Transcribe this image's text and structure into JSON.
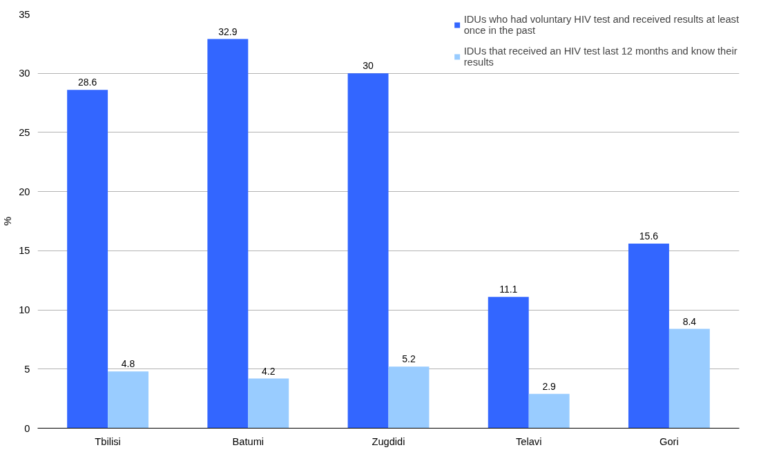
{
  "chart_data": {
    "type": "bar",
    "ylabel": "%",
    "categories": [
      "Tbilisi",
      "Batumi",
      "Zugdidi",
      "Telavi",
      "Gori"
    ],
    "series": [
      {
        "name": "IDUs who had voluntary HIV test and received results at least once in the past",
        "color": "#3366ff",
        "values": [
          28.6,
          32.9,
          30,
          11.1,
          15.6
        ]
      },
      {
        "name": "IDUs that received an HIV test last 12 months and know their results",
        "color": "#99ccff",
        "values": [
          4.8,
          4.2,
          5.2,
          2.9,
          8.4
        ]
      }
    ],
    "ylim": [
      0,
      35
    ],
    "yticks": [
      0,
      5,
      10,
      15,
      20,
      25,
      30,
      35
    ],
    "grid": "y",
    "legend": "top right",
    "data_labels": true
  }
}
